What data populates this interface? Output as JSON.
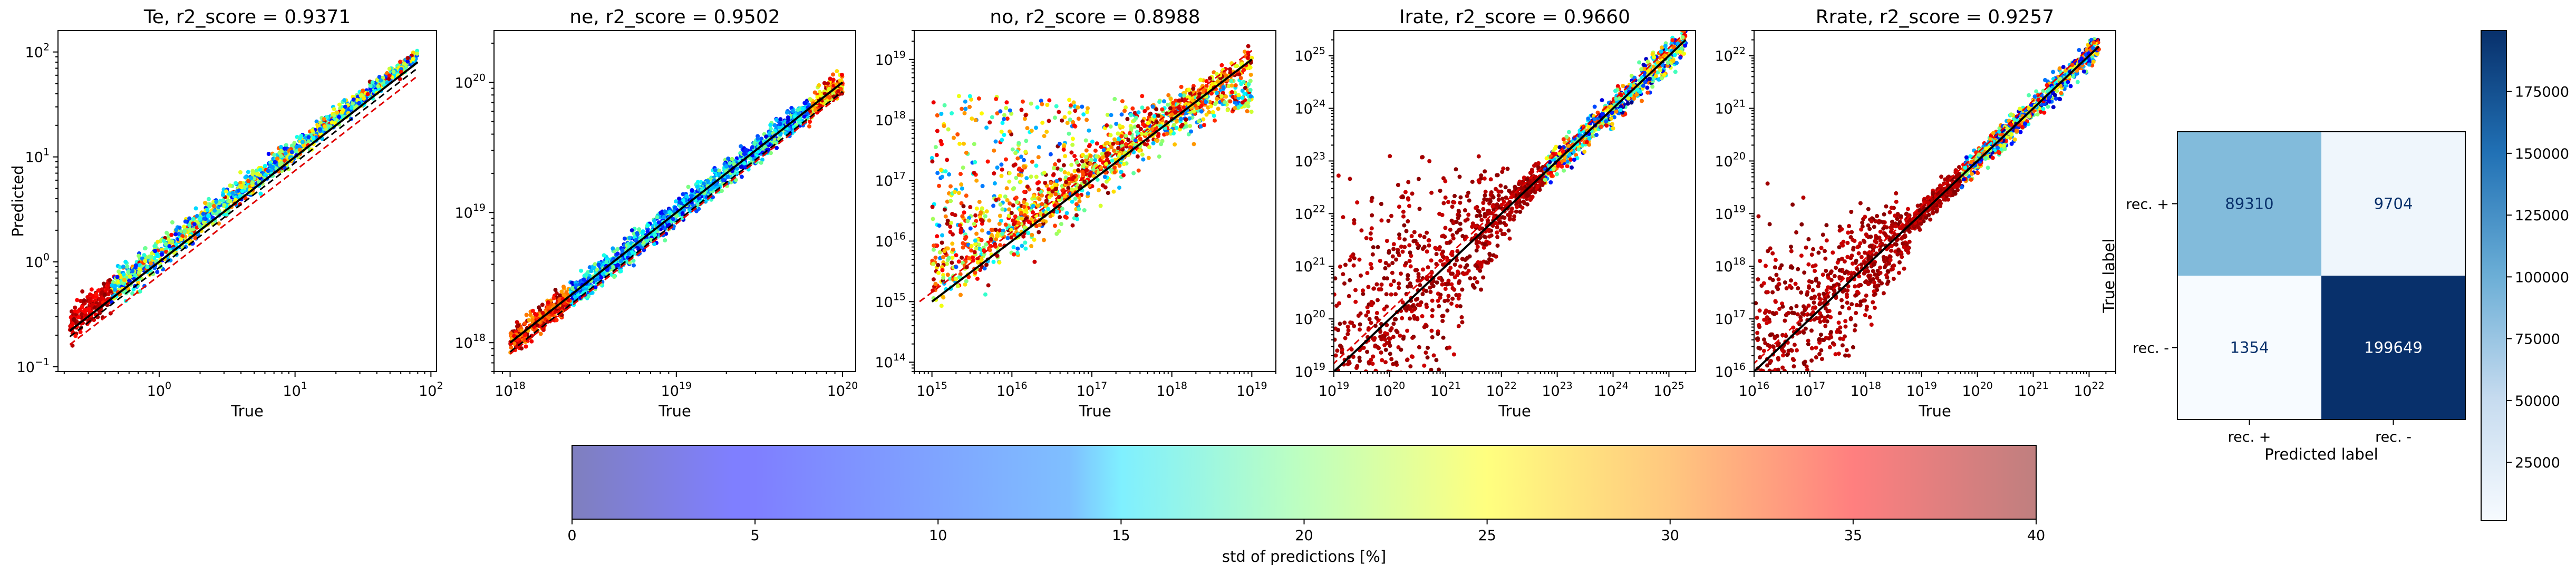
{
  "chart_data": [
    {
      "type": "scatter",
      "title": "Te, r2_score = 0.9371",
      "xlabel": "True",
      "ylabel": "Predicted",
      "xscale": "log",
      "yscale": "log",
      "xlim": [
        0.18,
        110
      ],
      "ylim": [
        0.09,
        160
      ],
      "x_ticks": [
        {
          "base": "10",
          "exp": "0"
        },
        {
          "base": "10",
          "exp": "1"
        },
        {
          "base": "10",
          "exp": "2"
        }
      ],
      "y_ticks": [
        {
          "base": "10",
          "exp": "−1"
        },
        {
          "base": "10",
          "exp": "0"
        },
        {
          "base": "10",
          "exp": "1"
        },
        {
          "base": "10",
          "exp": "2"
        }
      ],
      "data_range": [
        0.22,
        80
      ],
      "reference_lines": [
        "y = x (black solid)",
        "lower bound (black dashed)",
        "lower bound (red dashed)"
      ],
      "color_by": "std of predictions [%]"
    },
    {
      "type": "scatter",
      "title": "ne, r2_score = 0.9502",
      "xlabel": "True",
      "xscale": "log",
      "yscale": "log",
      "xlim": [
        8e+17,
        1.2e+20
      ],
      "ylim": [
        6e+17,
        2.5e+20
      ],
      "x_ticks": [
        {
          "base": "10",
          "exp": "18"
        },
        {
          "base": "10",
          "exp": "19"
        },
        {
          "base": "10",
          "exp": "20"
        }
      ],
      "y_ticks": [
        {
          "base": "10",
          "exp": "18"
        },
        {
          "base": "10",
          "exp": "19"
        },
        {
          "base": "10",
          "exp": "20"
        }
      ],
      "data_range": [
        1e+18,
        1e+20
      ],
      "reference_lines": [
        "y = x (black solid)",
        "lower bound (black dashed)",
        "lower bound (red dashed)"
      ],
      "color_by": "std of predictions [%]"
    },
    {
      "type": "scatter",
      "title": "no, r2_score = 0.8988",
      "xlabel": "True",
      "xscale": "log",
      "yscale": "log",
      "xlim": [
        600000000000000.0,
        2e+19
      ],
      "ylim": [
        70000000000000.0,
        3e+19
      ],
      "x_ticks": [
        {
          "base": "10",
          "exp": "15"
        },
        {
          "base": "10",
          "exp": "16"
        },
        {
          "base": "10",
          "exp": "17"
        },
        {
          "base": "10",
          "exp": "18"
        },
        {
          "base": "10",
          "exp": "19"
        }
      ],
      "y_ticks": [
        {
          "base": "10",
          "exp": "14"
        },
        {
          "base": "10",
          "exp": "15"
        },
        {
          "base": "10",
          "exp": "16"
        },
        {
          "base": "10",
          "exp": "17"
        },
        {
          "base": "10",
          "exp": "18"
        },
        {
          "base": "10",
          "exp": "19"
        }
      ],
      "data_range": [
        1000000000000000.0,
        1e+19
      ],
      "reference_lines": [
        "y = x (black solid)",
        "y = x (red dashed)"
      ],
      "color_by": "std of predictions [%]"
    },
    {
      "type": "scatter",
      "title": "Irate, r2_score = 0.9660",
      "xlabel": "True",
      "xscale": "log",
      "yscale": "log",
      "xlim": [
        1e+19,
        3e+25
      ],
      "ylim": [
        1e+19,
        3e+25
      ],
      "x_ticks": [
        {
          "base": "10",
          "exp": "19"
        },
        {
          "base": "10",
          "exp": "20"
        },
        {
          "base": "10",
          "exp": "21"
        },
        {
          "base": "10",
          "exp": "22"
        },
        {
          "base": "10",
          "exp": "23"
        },
        {
          "base": "10",
          "exp": "24"
        },
        {
          "base": "10",
          "exp": "25"
        }
      ],
      "y_ticks": [
        {
          "base": "10",
          "exp": "19"
        },
        {
          "base": "10",
          "exp": "20"
        },
        {
          "base": "10",
          "exp": "21"
        },
        {
          "base": "10",
          "exp": "22"
        },
        {
          "base": "10",
          "exp": "23"
        },
        {
          "base": "10",
          "exp": "24"
        },
        {
          "base": "10",
          "exp": "25"
        }
      ],
      "data_range": [
        1e+19,
        2e+25
      ],
      "reference_lines": [
        "y = x (black solid)",
        "y = x (red dashed)"
      ],
      "color_by": "std of predictions [%]"
    },
    {
      "type": "scatter",
      "title": "Rrate, r2_score = 0.9257",
      "xlabel": "True",
      "xscale": "log",
      "yscale": "log",
      "xlim": [
        1e+16,
        3e+22
      ],
      "ylim": [
        1e+16,
        3e+22
      ],
      "x_ticks": [
        {
          "base": "10",
          "exp": "16"
        },
        {
          "base": "10",
          "exp": "17"
        },
        {
          "base": "10",
          "exp": "18"
        },
        {
          "base": "10",
          "exp": "19"
        },
        {
          "base": "10",
          "exp": "20"
        },
        {
          "base": "10",
          "exp": "21"
        },
        {
          "base": "10",
          "exp": "22"
        }
      ],
      "y_ticks": [
        {
          "base": "10",
          "exp": "16"
        },
        {
          "base": "10",
          "exp": "17"
        },
        {
          "base": "10",
          "exp": "18"
        },
        {
          "base": "10",
          "exp": "19"
        },
        {
          "base": "10",
          "exp": "20"
        },
        {
          "base": "10",
          "exp": "21"
        },
        {
          "base": "10",
          "exp": "22"
        }
      ],
      "data_range": [
        1e+16,
        1.5e+22
      ],
      "reference_lines": [
        "y = x (black solid)",
        "y = x (red dashed)"
      ],
      "color_by": "std of predictions [%]"
    },
    {
      "type": "heatmap",
      "subtype": "confusion_matrix",
      "xlabel": "Predicted label",
      "ylabel": "True label",
      "row_labels": [
        "rec. +",
        "rec. -"
      ],
      "col_labels": [
        "rec. +",
        "rec. -"
      ],
      "values": [
        [
          89310,
          9704
        ],
        [
          1354,
          199649
        ]
      ],
      "colormap": "Blues",
      "colorbar": {
        "min": 1354,
        "max": 199649,
        "ticks": [
          "25000",
          "50000",
          "75000",
          "100000",
          "125000",
          "150000",
          "175000"
        ]
      }
    },
    {
      "type": "colorbar",
      "label": "std of predictions [%]",
      "range": [
        0,
        40
      ],
      "ticks": [
        "0",
        "5",
        "10",
        "15",
        "20",
        "25",
        "30",
        "35",
        "40"
      ],
      "colormap": "jet",
      "alpha": 0.5
    }
  ]
}
